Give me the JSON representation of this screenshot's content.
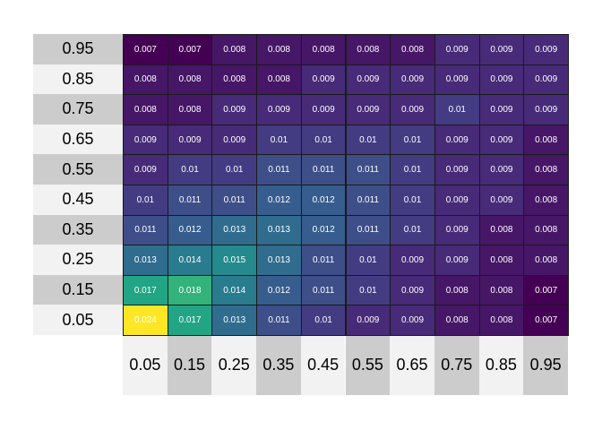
{
  "chart_data": {
    "type": "heatmap",
    "x_labels": [
      "0.05",
      "0.15",
      "0.25",
      "0.35",
      "0.45",
      "0.55",
      "0.65",
      "0.75",
      "0.85",
      "0.95"
    ],
    "y_labels_top_to_bottom": [
      "0.95",
      "0.85",
      "0.75",
      "0.65",
      "0.55",
      "0.45",
      "0.35",
      "0.25",
      "0.15",
      "0.05"
    ],
    "values_top_to_bottom": [
      [
        0.007,
        0.007,
        0.008,
        0.008,
        0.008,
        0.008,
        0.008,
        0.009,
        0.009,
        0.009
      ],
      [
        0.008,
        0.008,
        0.008,
        0.008,
        0.009,
        0.009,
        0.009,
        0.009,
        0.009,
        0.009
      ],
      [
        0.008,
        0.008,
        0.009,
        0.009,
        0.009,
        0.009,
        0.009,
        0.01,
        0.009,
        0.009
      ],
      [
        0.009,
        0.009,
        0.009,
        0.01,
        0.01,
        0.01,
        0.01,
        0.009,
        0.009,
        0.008
      ],
      [
        0.009,
        0.01,
        0.01,
        0.011,
        0.011,
        0.011,
        0.01,
        0.009,
        0.009,
        0.008
      ],
      [
        0.01,
        0.011,
        0.011,
        0.012,
        0.012,
        0.011,
        0.01,
        0.009,
        0.009,
        0.008
      ],
      [
        0.011,
        0.012,
        0.013,
        0.013,
        0.012,
        0.011,
        0.01,
        0.009,
        0.008,
        0.008
      ],
      [
        0.013,
        0.014,
        0.015,
        0.013,
        0.011,
        0.01,
        0.009,
        0.009,
        0.008,
        0.008
      ],
      [
        0.017,
        0.018,
        0.014,
        0.012,
        0.011,
        0.01,
        0.009,
        0.008,
        0.008,
        0.007
      ],
      [
        0.024,
        0.017,
        0.013,
        0.011,
        0.01,
        0.009,
        0.009,
        0.008,
        0.008,
        0.007
      ]
    ],
    "value_range": [
      0.007,
      0.024
    ],
    "colormap": "viridis",
    "label_band_colors": [
      "#cccccc",
      "#f2f2f2"
    ],
    "cell_text_color": "#ffffff",
    "cell_border_color": "#1a1a1a"
  }
}
